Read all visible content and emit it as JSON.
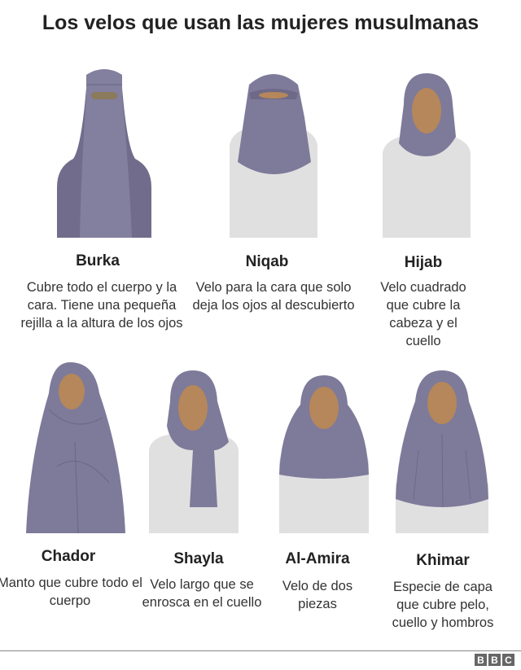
{
  "title": "Los velos que usan las mujeres musulmanas",
  "colors": {
    "veil": "#7e7a9a",
    "veil_dark": "#6e6987",
    "skin": "#b5875a",
    "clothing": "#e0e0e0"
  },
  "veils": [
    {
      "name": "Burka",
      "description": "Cubre todo el cuerpo y la cara. Tiene una pequeña rejilla a la altura de los ojos"
    },
    {
      "name": "Niqab",
      "description": "Velo para la cara que solo deja los ojos al descubierto"
    },
    {
      "name": "Hijab",
      "description": "Velo cuadrado que cubre la cabeza y el cuello"
    },
    {
      "name": "Chador",
      "description": "Manto que cubre todo el cuerpo"
    },
    {
      "name": "Shayla",
      "description": "Velo largo que se enrosca en el cuello"
    },
    {
      "name": "Al-Amira",
      "description": "Velo de dos piezas"
    },
    {
      "name": "Khimar",
      "description": "Especie de capa que cubre pelo, cuello y hombros"
    }
  ],
  "logo": {
    "letters": [
      "B",
      "B",
      "C"
    ]
  }
}
